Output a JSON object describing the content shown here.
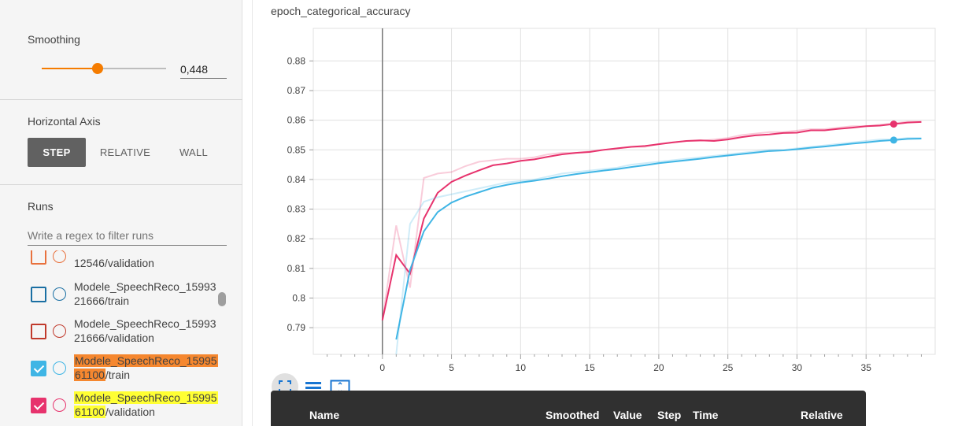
{
  "sidebar": {
    "smoothing": {
      "title": "Smoothing",
      "value": "0,448",
      "fraction": 0.448
    },
    "horizontal_axis": {
      "title": "Horizontal Axis",
      "options": [
        {
          "label": "STEP",
          "active": true
        },
        {
          "label": "RELATIVE",
          "active": false
        },
        {
          "label": "WALL",
          "active": false
        }
      ]
    },
    "runs": {
      "title": "Runs",
      "filter_placeholder": "Write a regex to filter runs",
      "items": [
        {
          "line1": "",
          "line2": "12546/validation",
          "checked": false,
          "color": "#e8713d",
          "highlight": ""
        },
        {
          "line1": "Modele_SpeechReco_15993",
          "line2": "21666/train",
          "checked": false,
          "color": "#1a6fa3",
          "highlight": ""
        },
        {
          "line1": "Modele_SpeechReco_15993",
          "line2": "21666/validation",
          "checked": false,
          "color": "#c0392b",
          "highlight": ""
        },
        {
          "line1": "Modele_SpeechReco_15995",
          "line2a": "61100",
          "line2b": "/train",
          "checked": true,
          "color": "#3fb5e5",
          "highlight": "#f5872f"
        },
        {
          "line1": "Modele_SpeechReco_15995",
          "line2a": "61100",
          "line2b": "/validation",
          "checked": true,
          "color": "#e7336d",
          "highlight": "#ffff33"
        }
      ]
    }
  },
  "chart_data": {
    "type": "line",
    "title": "epoch_categorical_accuracy",
    "xlabel": "",
    "ylabel": "",
    "xlim": [
      -5,
      40
    ],
    "ylim": [
      0.781,
      0.891
    ],
    "x_ticks": [
      0,
      5,
      10,
      15,
      20,
      25,
      30,
      35
    ],
    "y_ticks": [
      0.79,
      0.8,
      0.81,
      0.82,
      0.83,
      0.84,
      0.85,
      0.86,
      0.87,
      0.88
    ],
    "y_tick_labels": [
      "0.79",
      "0.8",
      "0.81",
      "0.82",
      "0.83",
      "0.84",
      "0.85",
      "0.86",
      "0.87",
      "0.88"
    ],
    "grid": true,
    "series": [
      {
        "color": "#e7336d",
        "x": [
          0,
          1,
          2,
          3,
          4,
          5,
          6,
          7,
          8,
          9,
          10,
          11,
          12,
          13,
          14,
          15,
          16,
          17,
          18,
          19,
          20,
          21,
          22,
          23,
          24,
          25,
          26,
          27,
          28,
          29,
          30,
          31,
          32,
          33,
          34,
          35,
          36,
          37,
          38,
          39
        ],
        "raw": [
          0.7925,
          0.8245,
          0.8035,
          0.8405,
          0.842,
          0.8425,
          0.8445,
          0.846,
          0.8465,
          0.847,
          0.847,
          0.8475,
          0.8485,
          0.849,
          0.849,
          0.8495,
          0.85,
          0.8505,
          0.851,
          0.851,
          0.852,
          0.8525,
          0.853,
          0.853,
          0.8535,
          0.854,
          0.855,
          0.8555,
          0.856,
          0.856,
          0.8565,
          0.857,
          0.857,
          0.8575,
          0.858,
          0.858,
          0.8585,
          0.859,
          0.8595,
          0.8595
        ],
        "smoothed": [
          0.7925,
          0.8145,
          0.8082,
          0.8268,
          0.8355,
          0.8392,
          0.8413,
          0.8431,
          0.8448,
          0.8454,
          0.8463,
          0.8468,
          0.8477,
          0.8485,
          0.849,
          0.8493,
          0.85,
          0.8505,
          0.851,
          0.8513,
          0.8519,
          0.8525,
          0.853,
          0.8532,
          0.853,
          0.8535,
          0.8543,
          0.8549,
          0.8552,
          0.8557,
          0.8558,
          0.8566,
          0.8566,
          0.8571,
          0.8575,
          0.858,
          0.8582,
          0.8587,
          0.8592,
          0.8594
        ],
        "marker_step": 37,
        "marker_value": 0.8587
      },
      {
        "color": "#3fb5e5",
        "x": [
          1,
          2,
          3,
          4,
          5,
          6,
          7,
          8,
          9,
          10,
          11,
          12,
          13,
          14,
          15,
          16,
          17,
          18,
          19,
          20,
          21,
          22,
          23,
          24,
          25,
          26,
          27,
          28,
          29,
          30,
          31,
          32,
          33,
          34,
          35,
          36,
          37,
          38,
          39
        ],
        "raw": [
          0.776,
          0.825,
          0.8325,
          0.834,
          0.835,
          0.836,
          0.837,
          0.838,
          0.839,
          0.8395,
          0.84,
          0.841,
          0.842,
          0.8425,
          0.843,
          0.8435,
          0.844,
          0.845,
          0.8455,
          0.846,
          0.8465,
          0.847,
          0.8475,
          0.848,
          0.8485,
          0.849,
          0.8495,
          0.85,
          0.85,
          0.8505,
          0.851,
          0.8515,
          0.852,
          0.8525,
          0.853,
          0.8535,
          0.8535,
          0.854,
          0.854
        ],
        "smoothed": [
          0.786,
          0.8095,
          0.8225,
          0.829,
          0.8322,
          0.8342,
          0.8357,
          0.8372,
          0.8382,
          0.839,
          0.8396,
          0.8403,
          0.8411,
          0.8418,
          0.8424,
          0.843,
          0.8435,
          0.8442,
          0.8448,
          0.8455,
          0.846,
          0.8465,
          0.847,
          0.8476,
          0.8481,
          0.8486,
          0.8491,
          0.8496,
          0.8498,
          0.8502,
          0.8507,
          0.8511,
          0.8516,
          0.8521,
          0.8525,
          0.853,
          0.8533,
          0.8537,
          0.8538
        ],
        "marker_step": 37,
        "marker_value": 0.8533
      }
    ]
  },
  "chart_tools": [
    {
      "icon": "fit-to-data-icon",
      "active": true
    },
    {
      "icon": "toggle-log-scale-icon",
      "active": false
    },
    {
      "icon": "fullscreen-icon",
      "active": false
    }
  ],
  "tooltip_table": {
    "headers": [
      "Name",
      "Smoothed",
      "Value",
      "Step",
      "Time",
      "Relative"
    ]
  }
}
